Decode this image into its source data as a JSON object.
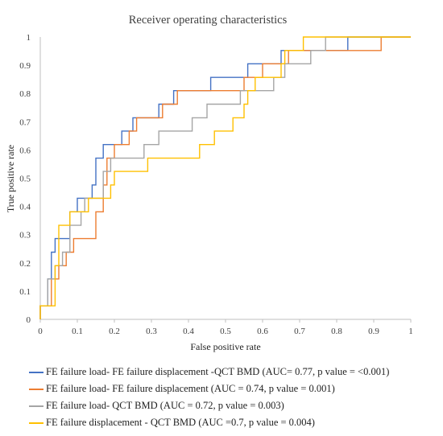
{
  "chart_data": {
    "type": "line",
    "title": "Receiver operating characteristics",
    "xlabel": "False positive rate",
    "ylabel": "True positive rate",
    "xlim": [
      0,
      1
    ],
    "ylim": [
      0,
      1
    ],
    "x_ticks": [
      "0",
      "0.1",
      "0.2",
      "0.3",
      "0.4",
      "0.5",
      "0.6",
      "0.7",
      "0.8",
      "0.9",
      "1"
    ],
    "y_ticks": [
      "0",
      "0.1",
      "0.2",
      "0.3",
      "0.4",
      "0.5",
      "0.6",
      "0.7",
      "0.8",
      "0.9",
      "1"
    ],
    "grid": false,
    "legend_position": "bottom",
    "series": [
      {
        "name": "FE failure load- FE failure displacement -QCT BMD (AUC= 0.77, p value = <0.001)",
        "color": "#4472C4",
        "points": [
          [
            0,
            0
          ],
          [
            0,
            0.048
          ],
          [
            0.02,
            0.048
          ],
          [
            0.02,
            0.143
          ],
          [
            0.03,
            0.143
          ],
          [
            0.03,
            0.238
          ],
          [
            0.04,
            0.238
          ],
          [
            0.04,
            0.286
          ],
          [
            0.08,
            0.286
          ],
          [
            0.08,
            0.381
          ],
          [
            0.1,
            0.381
          ],
          [
            0.1,
            0.429
          ],
          [
            0.14,
            0.429
          ],
          [
            0.14,
            0.476
          ],
          [
            0.15,
            0.476
          ],
          [
            0.15,
            0.571
          ],
          [
            0.17,
            0.571
          ],
          [
            0.17,
            0.619
          ],
          [
            0.22,
            0.619
          ],
          [
            0.22,
            0.667
          ],
          [
            0.25,
            0.667
          ],
          [
            0.25,
            0.714
          ],
          [
            0.32,
            0.714
          ],
          [
            0.32,
            0.762
          ],
          [
            0.36,
            0.762
          ],
          [
            0.36,
            0.81
          ],
          [
            0.46,
            0.81
          ],
          [
            0.46,
            0.857
          ],
          [
            0.56,
            0.857
          ],
          [
            0.56,
            0.905
          ],
          [
            0.65,
            0.905
          ],
          [
            0.65,
            0.952
          ],
          [
            0.83,
            0.952
          ],
          [
            0.83,
            1
          ],
          [
            1,
            1
          ]
        ]
      },
      {
        "name": "FE failure load- FE failure displacement (AUC = 0.74, p value = 0.001)",
        "color": "#ED7D31",
        "points": [
          [
            0,
            0
          ],
          [
            0,
            0.048
          ],
          [
            0.03,
            0.048
          ],
          [
            0.03,
            0.143
          ],
          [
            0.05,
            0.143
          ],
          [
            0.05,
            0.19
          ],
          [
            0.07,
            0.19
          ],
          [
            0.07,
            0.238
          ],
          [
            0.09,
            0.238
          ],
          [
            0.09,
            0.286
          ],
          [
            0.15,
            0.286
          ],
          [
            0.15,
            0.381
          ],
          [
            0.17,
            0.381
          ],
          [
            0.17,
            0.476
          ],
          [
            0.18,
            0.476
          ],
          [
            0.18,
            0.571
          ],
          [
            0.2,
            0.571
          ],
          [
            0.2,
            0.619
          ],
          [
            0.24,
            0.619
          ],
          [
            0.24,
            0.667
          ],
          [
            0.26,
            0.667
          ],
          [
            0.26,
            0.714
          ],
          [
            0.33,
            0.714
          ],
          [
            0.33,
            0.762
          ],
          [
            0.37,
            0.762
          ],
          [
            0.37,
            0.81
          ],
          [
            0.55,
            0.81
          ],
          [
            0.55,
            0.857
          ],
          [
            0.6,
            0.857
          ],
          [
            0.6,
            0.905
          ],
          [
            0.67,
            0.905
          ],
          [
            0.67,
            0.952
          ],
          [
            0.92,
            0.952
          ],
          [
            0.92,
            1
          ],
          [
            1,
            1
          ]
        ]
      },
      {
        "name": "FE failure load- QCT BMD (AUC = 0.72, p value = 0.003)",
        "color": "#A5A5A5",
        "points": [
          [
            0,
            0
          ],
          [
            0,
            0.048
          ],
          [
            0.02,
            0.048
          ],
          [
            0.02,
            0.143
          ],
          [
            0.04,
            0.143
          ],
          [
            0.04,
            0.19
          ],
          [
            0.06,
            0.19
          ],
          [
            0.06,
            0.238
          ],
          [
            0.08,
            0.238
          ],
          [
            0.08,
            0.333
          ],
          [
            0.11,
            0.333
          ],
          [
            0.11,
            0.381
          ],
          [
            0.12,
            0.381
          ],
          [
            0.12,
            0.429
          ],
          [
            0.17,
            0.429
          ],
          [
            0.17,
            0.524
          ],
          [
            0.19,
            0.524
          ],
          [
            0.19,
            0.571
          ],
          [
            0.28,
            0.571
          ],
          [
            0.28,
            0.619
          ],
          [
            0.32,
            0.619
          ],
          [
            0.32,
            0.667
          ],
          [
            0.41,
            0.667
          ],
          [
            0.41,
            0.714
          ],
          [
            0.45,
            0.714
          ],
          [
            0.45,
            0.762
          ],
          [
            0.54,
            0.762
          ],
          [
            0.54,
            0.81
          ],
          [
            0.63,
            0.81
          ],
          [
            0.63,
            0.857
          ],
          [
            0.66,
            0.857
          ],
          [
            0.66,
            0.905
          ],
          [
            0.73,
            0.905
          ],
          [
            0.73,
            0.952
          ],
          [
            0.77,
            0.952
          ],
          [
            0.77,
            1
          ],
          [
            1,
            1
          ]
        ]
      },
      {
        "name": "FE failure displacement - QCT BMD (AUC =0.7, p value = 0.004)",
        "color": "#FFC000",
        "points": [
          [
            0,
            0
          ],
          [
            0,
            0.048
          ],
          [
            0.04,
            0.048
          ],
          [
            0.04,
            0.19
          ],
          [
            0.05,
            0.19
          ],
          [
            0.05,
            0.333
          ],
          [
            0.08,
            0.333
          ],
          [
            0.08,
            0.381
          ],
          [
            0.13,
            0.381
          ],
          [
            0.13,
            0.429
          ],
          [
            0.19,
            0.429
          ],
          [
            0.19,
            0.476
          ],
          [
            0.2,
            0.476
          ],
          [
            0.2,
            0.524
          ],
          [
            0.29,
            0.524
          ],
          [
            0.29,
            0.571
          ],
          [
            0.43,
            0.571
          ],
          [
            0.43,
            0.619
          ],
          [
            0.47,
            0.619
          ],
          [
            0.47,
            0.667
          ],
          [
            0.52,
            0.667
          ],
          [
            0.52,
            0.714
          ],
          [
            0.55,
            0.714
          ],
          [
            0.55,
            0.762
          ],
          [
            0.56,
            0.762
          ],
          [
            0.56,
            0.81
          ],
          [
            0.58,
            0.81
          ],
          [
            0.58,
            0.857
          ],
          [
            0.65,
            0.857
          ],
          [
            0.65,
            0.905
          ],
          [
            0.66,
            0.905
          ],
          [
            0.66,
            0.952
          ],
          [
            0.71,
            0.952
          ],
          [
            0.71,
            1
          ],
          [
            1,
            1
          ]
        ]
      }
    ]
  }
}
